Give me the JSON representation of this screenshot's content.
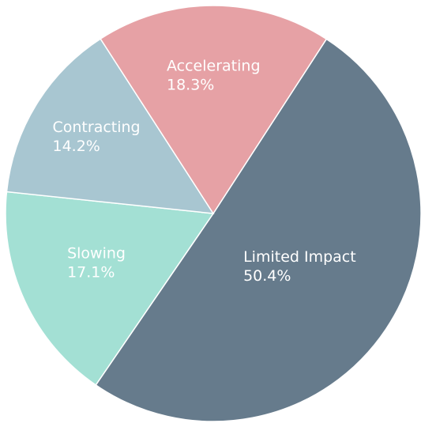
{
  "chart_data": {
    "type": "pie",
    "slices": [
      {
        "label": "Limited Impact",
        "value": 50.4,
        "value_label": "50.4%",
        "color": "#667b8c"
      },
      {
        "label": "Slowing",
        "value": 17.1,
        "value_label": "17.1%",
        "color": "#a3e0d4"
      },
      {
        "label": "Contracting",
        "value": 14.2,
        "value_label": "14.2%",
        "color": "#a8c6d1"
      },
      {
        "label": "Accelerating",
        "value": 18.3,
        "value_label": "18.3%",
        "color": "#e6a1a5"
      }
    ],
    "legend": "none",
    "labels": "inside"
  }
}
